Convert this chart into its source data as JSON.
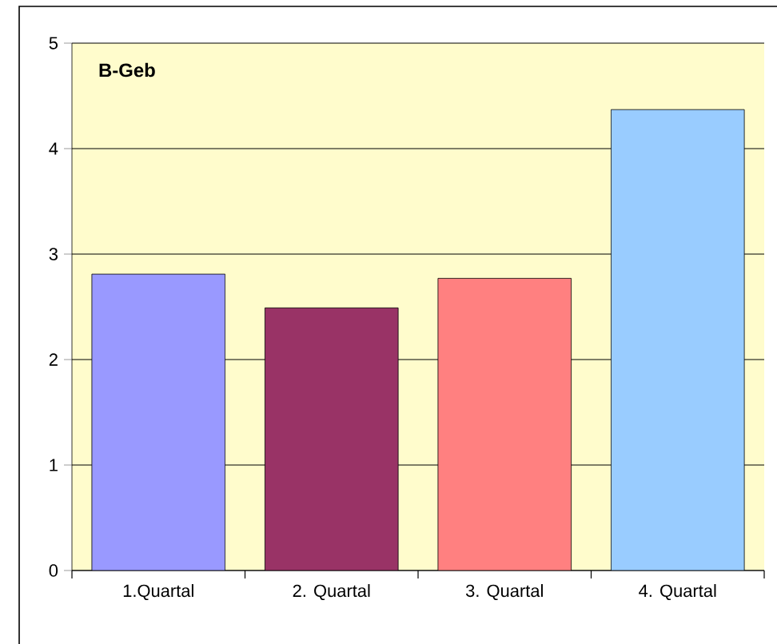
{
  "chart_data": {
    "type": "bar",
    "title": "B-Geb",
    "categories": [
      "1.Quartal",
      "2. Quartal",
      "3. Quartal",
      "4. Quartal"
    ],
    "values": [
      2.81,
      2.49,
      2.77,
      4.37
    ],
    "colors": [
      "#9999ff",
      "#993366",
      "#ff8080",
      "#99ccff"
    ],
    "ylim": [
      0,
      5
    ],
    "yticks": [
      0,
      1,
      2,
      3,
      4,
      5
    ],
    "grid": "y"
  }
}
